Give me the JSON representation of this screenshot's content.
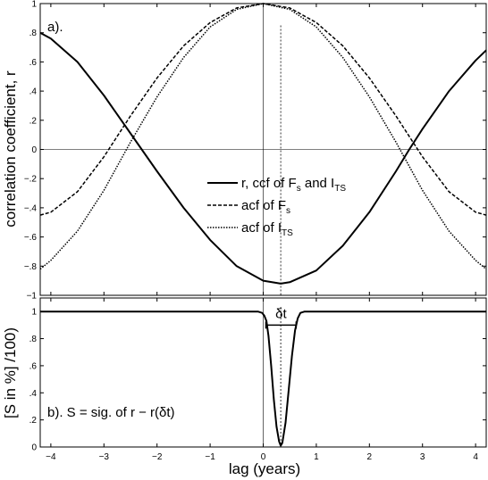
{
  "chart_data": [
    {
      "type": "line",
      "panel_label": "a).",
      "xlim": [
        -4.2,
        4.2
      ],
      "ylim": [
        -1,
        1
      ],
      "xticks": [
        -4,
        -3,
        -2,
        -1,
        0,
        1,
        2,
        3,
        4
      ],
      "yticks": [
        -1,
        -0.8,
        -0.6,
        -0.4,
        -0.2,
        0,
        0.2,
        0.4,
        0.6,
        0.8,
        1
      ],
      "ylabel": "correlation coefficient, r",
      "reference_lines": {
        "x0": 0,
        "y0": 0,
        "dashed_x": 0.33
      },
      "legend": {
        "placement": "center",
        "entries": [
          {
            "text": "r, ccf of F",
            "sub1": "s",
            "mid": " and I",
            "sub2": "TS",
            "style": "solid"
          },
          {
            "text": "acf of F",
            "sub1": "s",
            "style": "dashed"
          },
          {
            "text": "acf of I",
            "sub1": "TS",
            "style": "dotted"
          }
        ]
      },
      "series": [
        {
          "style": "solid",
          "x": [
            -4.2,
            -4.0,
            -3.5,
            -3.0,
            -2.5,
            -2.0,
            -1.5,
            -1.0,
            -0.5,
            0.0,
            0.33,
            0.5,
            1.0,
            1.5,
            2.0,
            2.5,
            2.75,
            3.0,
            3.5,
            4.0,
            4.2
          ],
          "y": [
            0.8,
            0.76,
            0.6,
            0.37,
            0.11,
            -0.15,
            -0.4,
            -0.62,
            -0.8,
            -0.9,
            -0.92,
            -0.91,
            -0.83,
            -0.66,
            -0.43,
            -0.15,
            0.0,
            0.14,
            0.4,
            0.61,
            0.68
          ]
        },
        {
          "style": "dashed",
          "x": [
            -4.2,
            -4.0,
            -3.5,
            -3.0,
            -2.5,
            -2.0,
            -1.5,
            -1.0,
            -0.5,
            0.0,
            0.5,
            1.0,
            1.5,
            2.0,
            2.5,
            3.0,
            3.5,
            4.0,
            4.2
          ],
          "y": [
            -0.45,
            -0.43,
            -0.29,
            -0.05,
            0.23,
            0.49,
            0.71,
            0.87,
            0.97,
            1.0,
            0.97,
            0.87,
            0.71,
            0.49,
            0.23,
            -0.05,
            -0.29,
            -0.43,
            -0.45
          ]
        },
        {
          "style": "dotted",
          "x": [
            -4.2,
            -4.0,
            -3.5,
            -3.0,
            -2.5,
            -2.0,
            -1.5,
            -1.0,
            -0.5,
            0.0,
            0.5,
            1.0,
            1.5,
            2.0,
            2.5,
            3.0,
            3.5,
            4.0,
            4.2
          ],
          "y": [
            -0.82,
            -0.76,
            -0.56,
            -0.28,
            0.05,
            0.36,
            0.63,
            0.84,
            0.96,
            1.0,
            0.96,
            0.84,
            0.63,
            0.36,
            0.05,
            -0.28,
            -0.56,
            -0.76,
            -0.82
          ]
        }
      ]
    },
    {
      "type": "line",
      "panel_label": "b). S = sig. of r − r(δt)",
      "xlim": [
        -4.2,
        4.2
      ],
      "ylim": [
        0,
        1.1
      ],
      "xticks": [
        -4,
        -3,
        -2,
        -1,
        0,
        1,
        2,
        3,
        4
      ],
      "yticks": [
        0,
        0.2,
        0.4,
        0.6,
        0.8,
        1
      ],
      "xlabel": "lag (years)",
      "ylabel": "[S in %] /100)",
      "reference_lines": {
        "x0": 0,
        "dashed_x": 0.33
      },
      "bracket": {
        "label": "δt",
        "x_start": 0.05,
        "x_end": 0.62,
        "y": 0.9
      },
      "series": [
        {
          "style": "solid",
          "x": [
            -4.2,
            -0.1,
            -0.02,
            0.02,
            0.06,
            0.1,
            0.15,
            0.2,
            0.25,
            0.3,
            0.33,
            0.36,
            0.42,
            0.48,
            0.54,
            0.6,
            0.65,
            0.7,
            0.78,
            4.2
          ],
          "y": [
            1.0,
            1.0,
            0.99,
            0.97,
            0.93,
            0.82,
            0.6,
            0.35,
            0.15,
            0.04,
            0.01,
            0.03,
            0.18,
            0.42,
            0.67,
            0.86,
            0.95,
            0.99,
            1.0,
            1.0
          ]
        }
      ]
    }
  ]
}
